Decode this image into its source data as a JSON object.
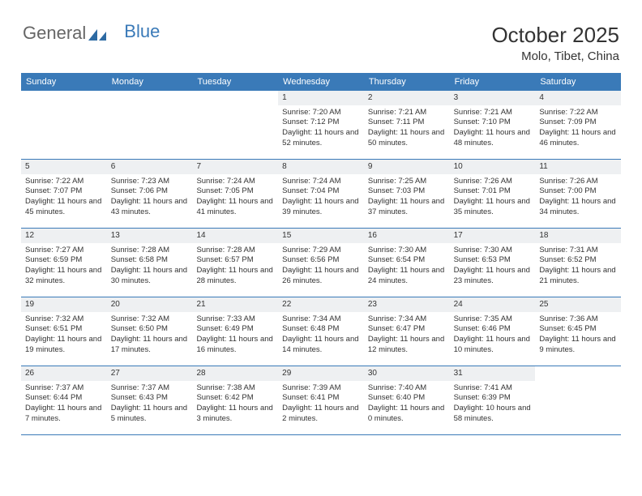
{
  "logo": {
    "text1": "General",
    "text2": "Blue"
  },
  "header": {
    "title": "October 2025",
    "location": "Molo, Tibet, China"
  },
  "colors": {
    "header_bg": "#3a7ab8",
    "daynum_bg": "#eef0f2",
    "text": "#333333"
  },
  "dayNames": [
    "Sunday",
    "Monday",
    "Tuesday",
    "Wednesday",
    "Thursday",
    "Friday",
    "Saturday"
  ],
  "weeks": [
    [
      {
        "n": "",
        "sunrise": "",
        "sunset": "",
        "daylight": ""
      },
      {
        "n": "",
        "sunrise": "",
        "sunset": "",
        "daylight": ""
      },
      {
        "n": "",
        "sunrise": "",
        "sunset": "",
        "daylight": ""
      },
      {
        "n": "1",
        "sunrise": "Sunrise: 7:20 AM",
        "sunset": "Sunset: 7:12 PM",
        "daylight": "Daylight: 11 hours and 52 minutes."
      },
      {
        "n": "2",
        "sunrise": "Sunrise: 7:21 AM",
        "sunset": "Sunset: 7:11 PM",
        "daylight": "Daylight: 11 hours and 50 minutes."
      },
      {
        "n": "3",
        "sunrise": "Sunrise: 7:21 AM",
        "sunset": "Sunset: 7:10 PM",
        "daylight": "Daylight: 11 hours and 48 minutes."
      },
      {
        "n": "4",
        "sunrise": "Sunrise: 7:22 AM",
        "sunset": "Sunset: 7:09 PM",
        "daylight": "Daylight: 11 hours and 46 minutes."
      }
    ],
    [
      {
        "n": "5",
        "sunrise": "Sunrise: 7:22 AM",
        "sunset": "Sunset: 7:07 PM",
        "daylight": "Daylight: 11 hours and 45 minutes."
      },
      {
        "n": "6",
        "sunrise": "Sunrise: 7:23 AM",
        "sunset": "Sunset: 7:06 PM",
        "daylight": "Daylight: 11 hours and 43 minutes."
      },
      {
        "n": "7",
        "sunrise": "Sunrise: 7:24 AM",
        "sunset": "Sunset: 7:05 PM",
        "daylight": "Daylight: 11 hours and 41 minutes."
      },
      {
        "n": "8",
        "sunrise": "Sunrise: 7:24 AM",
        "sunset": "Sunset: 7:04 PM",
        "daylight": "Daylight: 11 hours and 39 minutes."
      },
      {
        "n": "9",
        "sunrise": "Sunrise: 7:25 AM",
        "sunset": "Sunset: 7:03 PM",
        "daylight": "Daylight: 11 hours and 37 minutes."
      },
      {
        "n": "10",
        "sunrise": "Sunrise: 7:26 AM",
        "sunset": "Sunset: 7:01 PM",
        "daylight": "Daylight: 11 hours and 35 minutes."
      },
      {
        "n": "11",
        "sunrise": "Sunrise: 7:26 AM",
        "sunset": "Sunset: 7:00 PM",
        "daylight": "Daylight: 11 hours and 34 minutes."
      }
    ],
    [
      {
        "n": "12",
        "sunrise": "Sunrise: 7:27 AM",
        "sunset": "Sunset: 6:59 PM",
        "daylight": "Daylight: 11 hours and 32 minutes."
      },
      {
        "n": "13",
        "sunrise": "Sunrise: 7:28 AM",
        "sunset": "Sunset: 6:58 PM",
        "daylight": "Daylight: 11 hours and 30 minutes."
      },
      {
        "n": "14",
        "sunrise": "Sunrise: 7:28 AM",
        "sunset": "Sunset: 6:57 PM",
        "daylight": "Daylight: 11 hours and 28 minutes."
      },
      {
        "n": "15",
        "sunrise": "Sunrise: 7:29 AM",
        "sunset": "Sunset: 6:56 PM",
        "daylight": "Daylight: 11 hours and 26 minutes."
      },
      {
        "n": "16",
        "sunrise": "Sunrise: 7:30 AM",
        "sunset": "Sunset: 6:54 PM",
        "daylight": "Daylight: 11 hours and 24 minutes."
      },
      {
        "n": "17",
        "sunrise": "Sunrise: 7:30 AM",
        "sunset": "Sunset: 6:53 PM",
        "daylight": "Daylight: 11 hours and 23 minutes."
      },
      {
        "n": "18",
        "sunrise": "Sunrise: 7:31 AM",
        "sunset": "Sunset: 6:52 PM",
        "daylight": "Daylight: 11 hours and 21 minutes."
      }
    ],
    [
      {
        "n": "19",
        "sunrise": "Sunrise: 7:32 AM",
        "sunset": "Sunset: 6:51 PM",
        "daylight": "Daylight: 11 hours and 19 minutes."
      },
      {
        "n": "20",
        "sunrise": "Sunrise: 7:32 AM",
        "sunset": "Sunset: 6:50 PM",
        "daylight": "Daylight: 11 hours and 17 minutes."
      },
      {
        "n": "21",
        "sunrise": "Sunrise: 7:33 AM",
        "sunset": "Sunset: 6:49 PM",
        "daylight": "Daylight: 11 hours and 16 minutes."
      },
      {
        "n": "22",
        "sunrise": "Sunrise: 7:34 AM",
        "sunset": "Sunset: 6:48 PM",
        "daylight": "Daylight: 11 hours and 14 minutes."
      },
      {
        "n": "23",
        "sunrise": "Sunrise: 7:34 AM",
        "sunset": "Sunset: 6:47 PM",
        "daylight": "Daylight: 11 hours and 12 minutes."
      },
      {
        "n": "24",
        "sunrise": "Sunrise: 7:35 AM",
        "sunset": "Sunset: 6:46 PM",
        "daylight": "Daylight: 11 hours and 10 minutes."
      },
      {
        "n": "25",
        "sunrise": "Sunrise: 7:36 AM",
        "sunset": "Sunset: 6:45 PM",
        "daylight": "Daylight: 11 hours and 9 minutes."
      }
    ],
    [
      {
        "n": "26",
        "sunrise": "Sunrise: 7:37 AM",
        "sunset": "Sunset: 6:44 PM",
        "daylight": "Daylight: 11 hours and 7 minutes."
      },
      {
        "n": "27",
        "sunrise": "Sunrise: 7:37 AM",
        "sunset": "Sunset: 6:43 PM",
        "daylight": "Daylight: 11 hours and 5 minutes."
      },
      {
        "n": "28",
        "sunrise": "Sunrise: 7:38 AM",
        "sunset": "Sunset: 6:42 PM",
        "daylight": "Daylight: 11 hours and 3 minutes."
      },
      {
        "n": "29",
        "sunrise": "Sunrise: 7:39 AM",
        "sunset": "Sunset: 6:41 PM",
        "daylight": "Daylight: 11 hours and 2 minutes."
      },
      {
        "n": "30",
        "sunrise": "Sunrise: 7:40 AM",
        "sunset": "Sunset: 6:40 PM",
        "daylight": "Daylight: 11 hours and 0 minutes."
      },
      {
        "n": "31",
        "sunrise": "Sunrise: 7:41 AM",
        "sunset": "Sunset: 6:39 PM",
        "daylight": "Daylight: 10 hours and 58 minutes."
      },
      {
        "n": "",
        "sunrise": "",
        "sunset": "",
        "daylight": ""
      }
    ]
  ]
}
